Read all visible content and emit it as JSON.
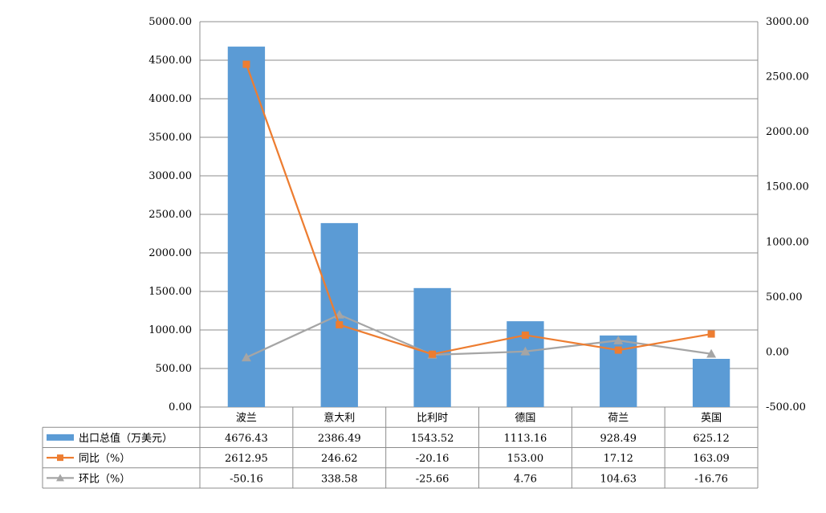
{
  "colors": {
    "bar": "#5b9bd5",
    "yoy": "#ed7d31",
    "mom": "#a5a5a5",
    "grid": "#8c8c8c"
  },
  "chart_data": {
    "type": "bar",
    "categories": [
      "波兰",
      "意大利",
      "比利时",
      "德国",
      "荷兰",
      "英国"
    ],
    "series": [
      {
        "name": "出口总值（万美元）",
        "type": "bar",
        "axis": "left",
        "values": [
          4676.43,
          2386.49,
          1543.52,
          1113.16,
          928.49,
          625.12
        ],
        "labels": [
          "4676.43",
          "2386.49",
          "1543.52",
          "1113.16",
          "928.49",
          "625.12"
        ]
      },
      {
        "name": "同比（%）",
        "type": "line",
        "marker": "square",
        "axis": "right",
        "values": [
          2612.95,
          246.62,
          -20.16,
          153.0,
          17.12,
          163.09
        ],
        "labels": [
          "2612.95",
          "246.62",
          "-20.16",
          "153.00",
          "17.12",
          "163.09"
        ]
      },
      {
        "name": "环比（%）",
        "type": "line",
        "marker": "triangle",
        "axis": "right",
        "values": [
          -50.16,
          338.58,
          -25.66,
          4.76,
          104.63,
          -16.76
        ],
        "labels": [
          "-50.16",
          "338.58",
          "-25.66",
          "4.76",
          "104.63",
          "-16.76"
        ]
      }
    ],
    "y_left": {
      "ylim": [
        0,
        5000
      ],
      "ticks": [
        "0.00",
        "500.00",
        "1000.00",
        "1500.00",
        "2000.00",
        "2500.00",
        "3000.00",
        "3500.00",
        "4000.00",
        "4500.00",
        "5000.00"
      ]
    },
    "y_right": {
      "ylim": [
        -500,
        3000
      ],
      "ticks": [
        "-500.00",
        "0.00",
        "500.00",
        "1000.00",
        "1500.00",
        "2000.00",
        "2500.00",
        "3000.00"
      ]
    },
    "grid": true,
    "legend": "data table below chart"
  }
}
